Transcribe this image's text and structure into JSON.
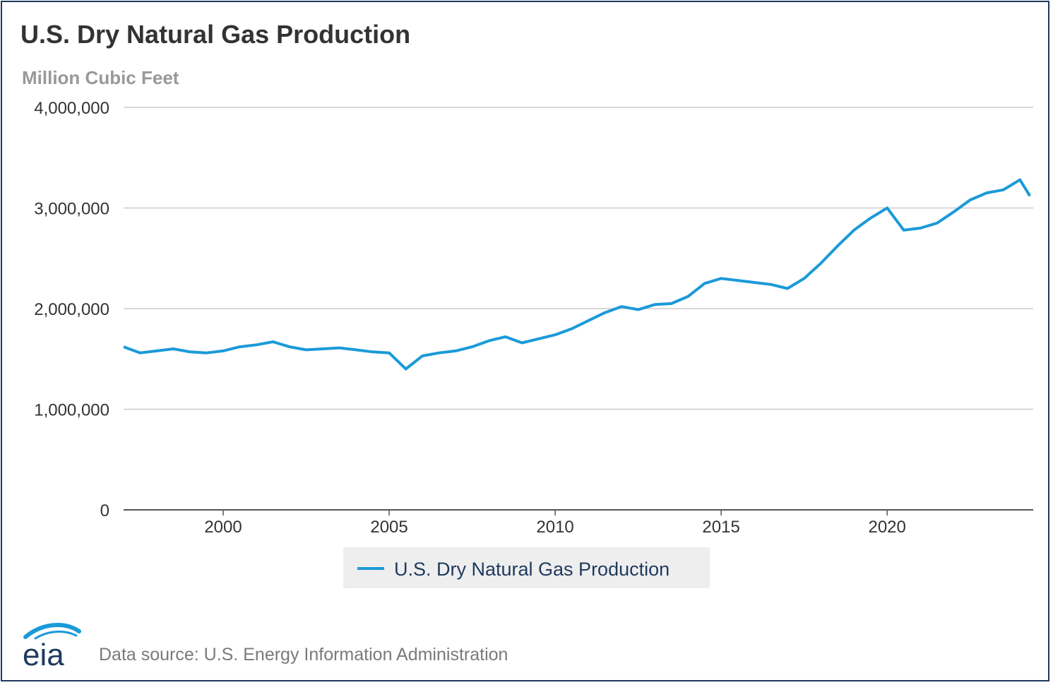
{
  "title": "U.S. Dry Natural Gas Production",
  "unit_label": "Million Cubic Feet",
  "source": "Data source: U.S. Energy Information Administration",
  "logo_text": "eia",
  "colors": {
    "series": "#1b9ad8",
    "grid": "#cccccc",
    "axis": "#555555",
    "text": "#333333"
  },
  "chart_data": {
    "type": "line",
    "title": "U.S. Dry Natural Gas Production",
    "ylabel": "Million Cubic Feet",
    "xlabel": "",
    "ylim": [
      0,
      4000000
    ],
    "xlim": [
      1997.0,
      2024.4
    ],
    "yticks": [
      0,
      1000000,
      2000000,
      3000000,
      4000000
    ],
    "ytick_labels": [
      "0",
      "1,000,000",
      "2,000,000",
      "3,000,000",
      "4,000,000"
    ],
    "xticks": [
      2000,
      2005,
      2010,
      2015,
      2020
    ],
    "xtick_labels": [
      "2000",
      "2005",
      "2010",
      "2015",
      "2020"
    ],
    "grid": true,
    "legend": "bottom-center",
    "series": [
      {
        "name": "U.S. Dry Natural Gas Production",
        "x": [
          1997.0,
          1997.5,
          1998.0,
          1998.5,
          1999.0,
          1999.5,
          2000.0,
          2000.5,
          2001.0,
          2001.5,
          2002.0,
          2002.5,
          2003.0,
          2003.5,
          2004.0,
          2004.5,
          2005.0,
          2005.5,
          2006.0,
          2006.5,
          2007.0,
          2007.5,
          2008.0,
          2008.5,
          2009.0,
          2009.5,
          2010.0,
          2010.5,
          2011.0,
          2011.5,
          2012.0,
          2012.5,
          2013.0,
          2013.5,
          2014.0,
          2014.5,
          2015.0,
          2015.5,
          2016.0,
          2016.5,
          2017.0,
          2017.5,
          2018.0,
          2018.5,
          2019.0,
          2019.5,
          2020.0,
          2020.5,
          2021.0,
          2021.5,
          2022.0,
          2022.5,
          2023.0,
          2023.5,
          2024.0,
          2024.3
        ],
        "values": [
          1620000,
          1560000,
          1580000,
          1600000,
          1570000,
          1560000,
          1580000,
          1620000,
          1640000,
          1670000,
          1620000,
          1590000,
          1600000,
          1610000,
          1590000,
          1570000,
          1560000,
          1400000,
          1530000,
          1560000,
          1580000,
          1620000,
          1680000,
          1720000,
          1660000,
          1700000,
          1740000,
          1800000,
          1880000,
          1960000,
          2020000,
          1990000,
          2040000,
          2050000,
          2120000,
          2250000,
          2300000,
          2280000,
          2260000,
          2240000,
          2200000,
          2300000,
          2450000,
          2620000,
          2780000,
          2900000,
          3000000,
          2780000,
          2800000,
          2850000,
          2960000,
          3080000,
          3150000,
          3180000,
          3280000,
          3120000
        ]
      }
    ]
  }
}
